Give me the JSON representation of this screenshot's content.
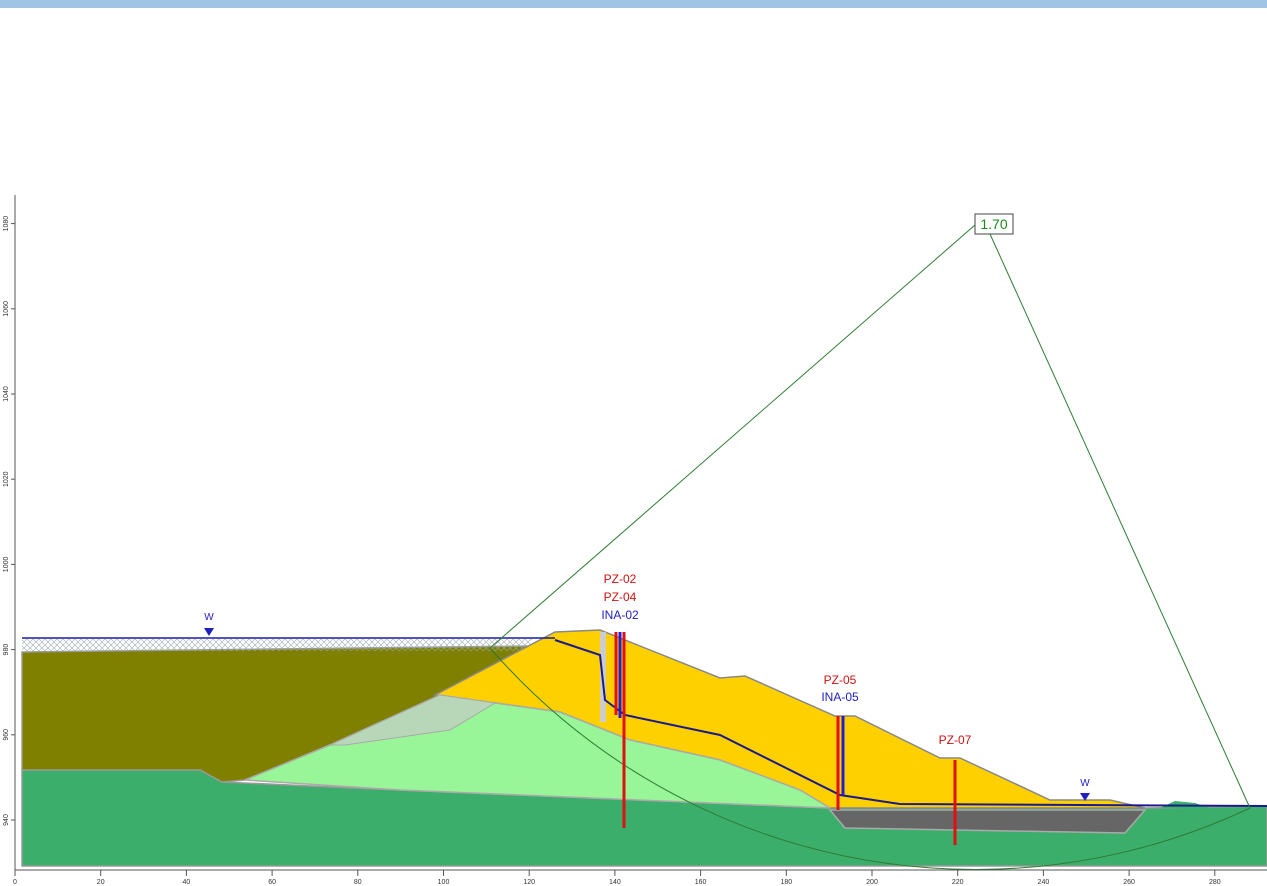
{
  "analysis": {
    "factor_of_safety": "1.70"
  },
  "instruments": [
    "PZ-02",
    "PZ-04",
    "INA-02",
    "PZ-05",
    "INA-05",
    "PZ-07"
  ],
  "water_markers": [
    "W",
    "W"
  ],
  "axes": {
    "xticks": [
      0,
      20,
      40,
      60,
      80,
      100,
      120,
      140,
      160,
      180,
      200,
      220,
      240,
      260,
      280
    ],
    "yticks": [
      940,
      960,
      980,
      1000,
      1020,
      1040,
      1060,
      1080
    ]
  }
}
